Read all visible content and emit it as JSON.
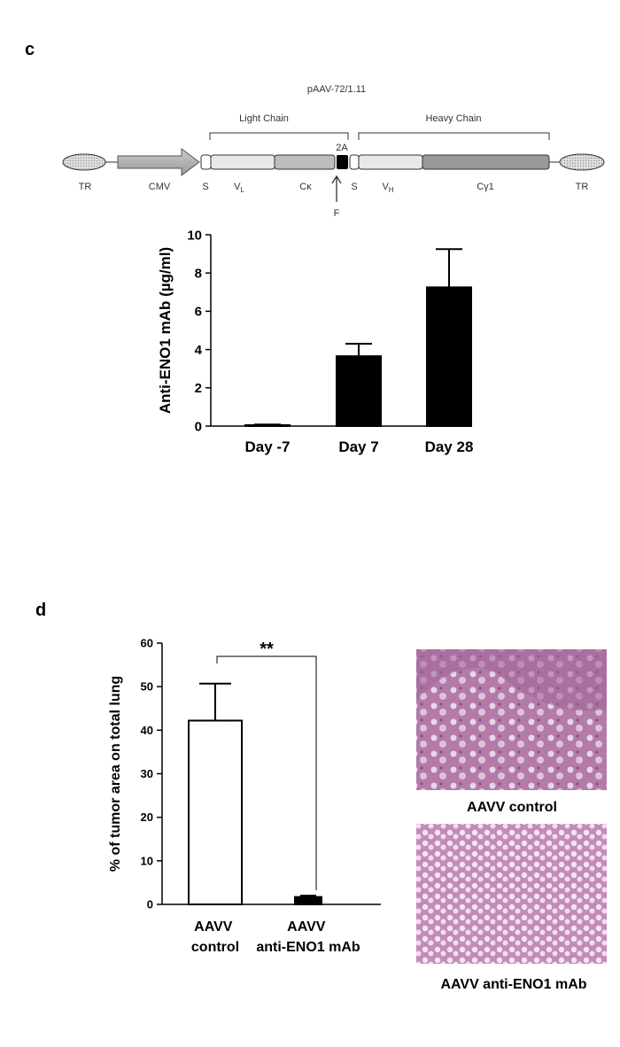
{
  "panel_c_label": "c",
  "panel_d_label": "d",
  "diagram": {
    "title": "pAAV-72/1.11",
    "light_chain": "Light Chain",
    "heavy_chain": "Heavy Chain",
    "two_a": "2A",
    "f_label": "F",
    "elements": [
      {
        "label": "TR"
      },
      {
        "label": "CMV"
      },
      {
        "label": "S"
      },
      {
        "label": "V",
        "subscript": "L"
      },
      {
        "label": "Cκ"
      },
      {
        "label": "S"
      },
      {
        "label": "V",
        "subscript": "H"
      },
      {
        "label": "Cγ1"
      },
      {
        "label": "TR"
      }
    ]
  },
  "chart_data": [
    {
      "type": "bar",
      "y_label": "Anti-ENO1 mAb (µg/ml)",
      "categories": [
        "Day -7",
        "Day 7",
        "Day 28"
      ],
      "values": [
        0.05,
        3.65,
        7.25
      ],
      "errors": [
        0.03,
        0.65,
        2.0
      ],
      "colors": [
        "#000000",
        "#000000",
        "#000000"
      ],
      "ylim": [
        0,
        10
      ],
      "yticks": [
        0,
        2,
        4,
        6,
        8,
        10
      ]
    },
    {
      "type": "bar",
      "y_label": "% of tumor area on total lung",
      "categories": [
        "AAVV control",
        "AAVV anti-ENO1 mAb"
      ],
      "values": [
        42.2,
        1.7
      ],
      "errors": [
        8.5,
        0.3
      ],
      "colors": [
        "#ffffff",
        "#000000"
      ],
      "ylim": [
        0,
        60
      ],
      "yticks": [
        0,
        10,
        20,
        30,
        40,
        50,
        60
      ],
      "annotation": "**"
    }
  ],
  "images": [
    {
      "caption": "AAVV control"
    },
    {
      "caption": "AAVV anti-ENO1 mAb"
    }
  ]
}
